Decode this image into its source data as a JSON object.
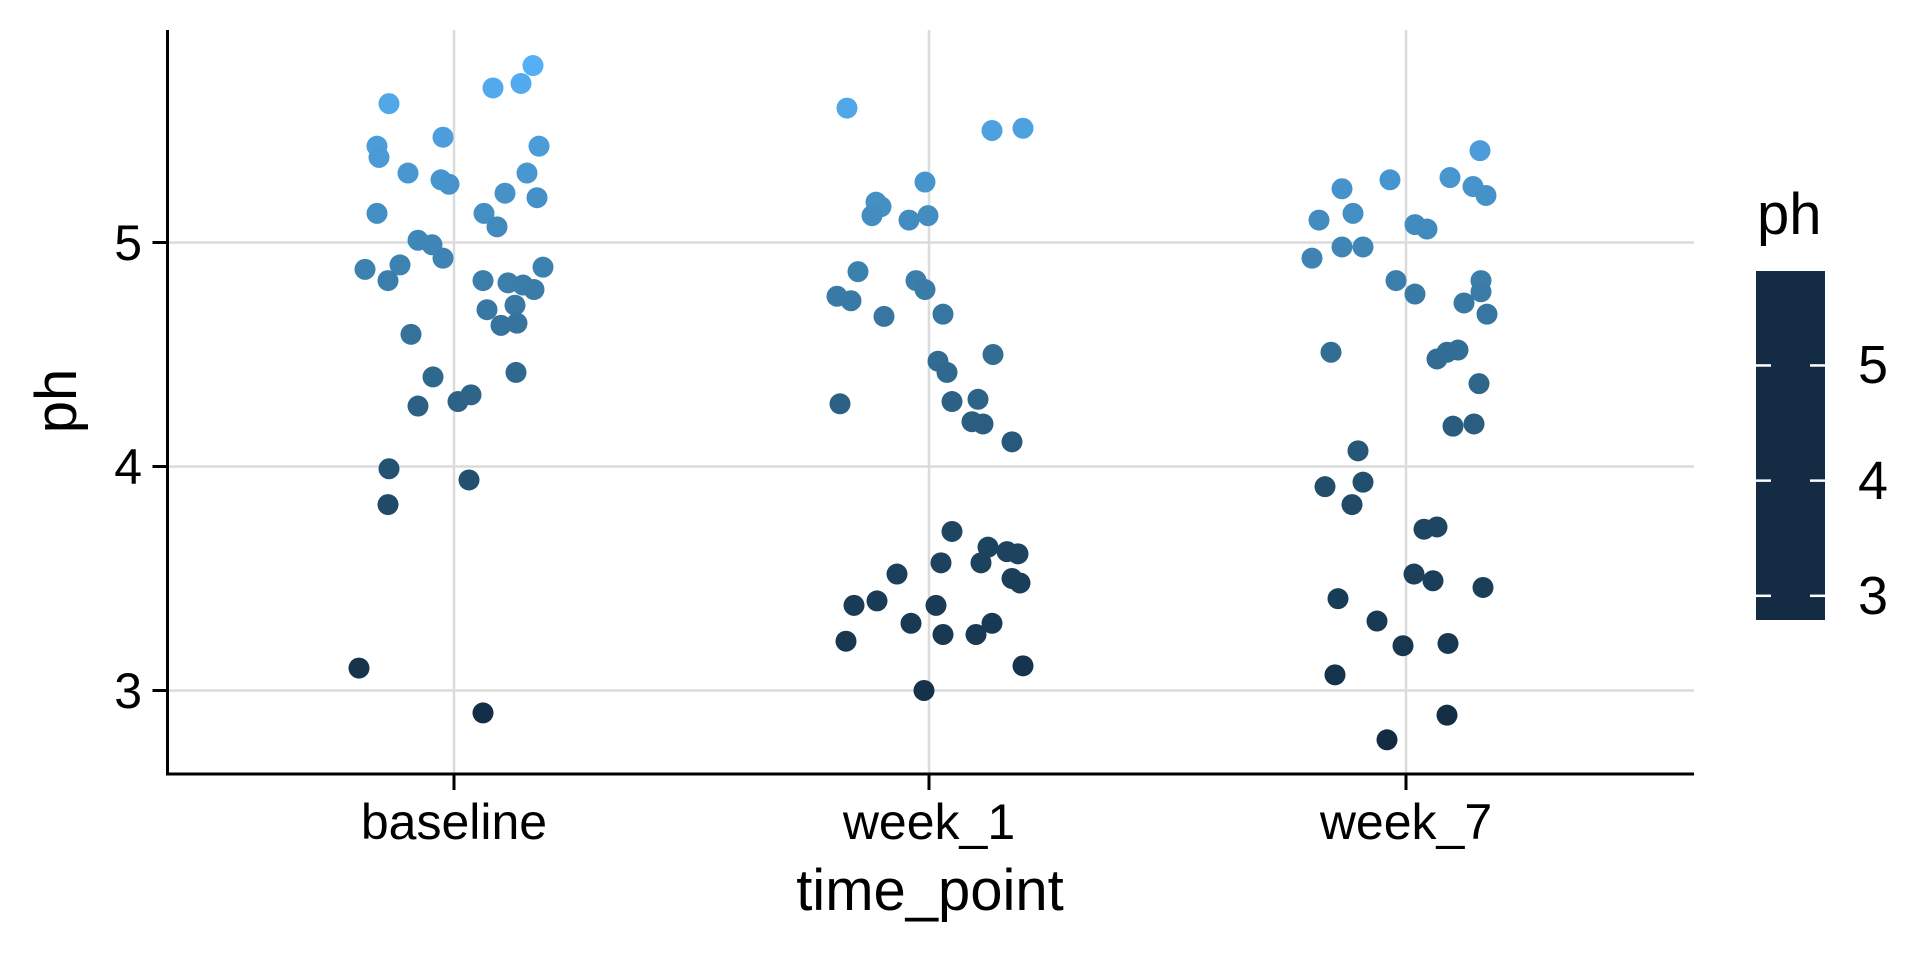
{
  "chart_data": {
    "type": "scatter",
    "subtype": "jitter",
    "title": "",
    "x_axis": {
      "label": "time_point",
      "categories": [
        "baseline",
        "week_1",
        "week_7"
      ],
      "grid": true
    },
    "y_axis": {
      "label": "ph",
      "tick_labels": [
        "5",
        "4",
        "3"
      ],
      "tick_values": [
        5,
        4,
        3
      ],
      "range": [
        2.62,
        5.97
      ],
      "grid": true
    },
    "legend": {
      "title": "ph",
      "position": "right",
      "tick_labels": [
        "5",
        "4",
        "3"
      ],
      "tick_values": [
        5,
        4,
        3
      ],
      "domain": [
        2.79,
        5.82
      ],
      "gradient": [
        {
          "t": 0.0,
          "color": "#132B43"
        },
        {
          "t": 0.33,
          "color": "#1F4864"
        },
        {
          "t": 0.66,
          "color": "#3A7CA8"
        },
        {
          "t": 1.0,
          "color": "#56B1F7"
        }
      ]
    },
    "style": {
      "grid_color": "#DBDBDB",
      "axis_color": "#000000",
      "point_radius": 10.5,
      "background": "#ffffff"
    },
    "points": [
      [
        0,
        -65,
        5.62
      ],
      [
        0,
        39,
        5.69
      ],
      [
        0,
        67,
        5.71
      ],
      [
        0,
        79,
        5.79
      ],
      [
        0,
        -77,
        5.43
      ],
      [
        0,
        -75,
        5.38
      ],
      [
        0,
        -11,
        5.47
      ],
      [
        0,
        85,
        5.43
      ],
      [
        0,
        -46,
        5.31
      ],
      [
        0,
        -13,
        5.28
      ],
      [
        0,
        -5,
        5.26
      ],
      [
        0,
        73,
        5.31
      ],
      [
        0,
        51,
        5.22
      ],
      [
        0,
        83,
        5.2
      ],
      [
        0,
        -77,
        5.13
      ],
      [
        0,
        30,
        5.13
      ],
      [
        0,
        43,
        5.07
      ],
      [
        0,
        -36,
        5.01
      ],
      [
        0,
        -22,
        4.99
      ],
      [
        0,
        -11,
        4.93
      ],
      [
        0,
        -89,
        4.88
      ],
      [
        0,
        -54,
        4.9
      ],
      [
        0,
        -66,
        4.83
      ],
      [
        0,
        29,
        4.83
      ],
      [
        0,
        54,
        4.82
      ],
      [
        0,
        69,
        4.81
      ],
      [
        0,
        89,
        4.89
      ],
      [
        0,
        80,
        4.79
      ],
      [
        0,
        33,
        4.7
      ],
      [
        0,
        61,
        4.72
      ],
      [
        0,
        47,
        4.63
      ],
      [
        0,
        63,
        4.64
      ],
      [
        0,
        -43,
        4.59
      ],
      [
        0,
        -21,
        4.4
      ],
      [
        0,
        62,
        4.42
      ],
      [
        0,
        -36,
        4.27
      ],
      [
        0,
        4,
        4.29
      ],
      [
        0,
        17,
        4.32
      ],
      [
        0,
        -65,
        3.99
      ],
      [
        0,
        15,
        3.94
      ],
      [
        0,
        -66,
        3.83
      ],
      [
        0,
        -95,
        3.1
      ],
      [
        0,
        29,
        2.9
      ],
      [
        1,
        -82,
        5.6
      ],
      [
        1,
        63,
        5.5
      ],
      [
        1,
        94,
        5.51
      ],
      [
        1,
        -4,
        5.27
      ],
      [
        1,
        -53,
        5.18
      ],
      [
        1,
        -48,
        5.16
      ],
      [
        1,
        -57,
        5.12
      ],
      [
        1,
        -20,
        5.1
      ],
      [
        1,
        -1,
        5.12
      ],
      [
        1,
        -71,
        4.87
      ],
      [
        1,
        -92,
        4.76
      ],
      [
        1,
        -78,
        4.74
      ],
      [
        1,
        -13,
        4.83
      ],
      [
        1,
        -4,
        4.79
      ],
      [
        1,
        -45,
        4.67
      ],
      [
        1,
        14,
        4.68
      ],
      [
        1,
        9,
        4.47
      ],
      [
        1,
        18,
        4.42
      ],
      [
        1,
        64,
        4.5
      ],
      [
        1,
        -89,
        4.28
      ],
      [
        1,
        23,
        4.29
      ],
      [
        1,
        49,
        4.3
      ],
      [
        1,
        43,
        4.2
      ],
      [
        1,
        54,
        4.19
      ],
      [
        1,
        83,
        4.11
      ],
      [
        1,
        23,
        3.71
      ],
      [
        1,
        59,
        3.64
      ],
      [
        1,
        52,
        3.57
      ],
      [
        1,
        78,
        3.62
      ],
      [
        1,
        89,
        3.61
      ],
      [
        1,
        12,
        3.57
      ],
      [
        1,
        83,
        3.5
      ],
      [
        1,
        91,
        3.48
      ],
      [
        1,
        -32,
        3.52
      ],
      [
        1,
        -75,
        3.38
      ],
      [
        1,
        -52,
        3.4
      ],
      [
        1,
        7,
        3.38
      ],
      [
        1,
        -18,
        3.3
      ],
      [
        1,
        14,
        3.25
      ],
      [
        1,
        47,
        3.25
      ],
      [
        1,
        63,
        3.3
      ],
      [
        1,
        -83,
        3.22
      ],
      [
        1,
        94,
        3.11
      ],
      [
        1,
        -5,
        3.0
      ],
      [
        2,
        74,
        5.41
      ],
      [
        2,
        44,
        5.29
      ],
      [
        2,
        67,
        5.25
      ],
      [
        2,
        80,
        5.21
      ],
      [
        2,
        -16,
        5.28
      ],
      [
        2,
        -64,
        5.24
      ],
      [
        2,
        -53,
        5.13
      ],
      [
        2,
        -87,
        5.1
      ],
      [
        2,
        9,
        5.08
      ],
      [
        2,
        21,
        5.06
      ],
      [
        2,
        -64,
        4.98
      ],
      [
        2,
        -43,
        4.98
      ],
      [
        2,
        -94,
        4.93
      ],
      [
        2,
        -10,
        4.83
      ],
      [
        2,
        9,
        4.77
      ],
      [
        2,
        75,
        4.83
      ],
      [
        2,
        75,
        4.78
      ],
      [
        2,
        58,
        4.73
      ],
      [
        2,
        81,
        4.68
      ],
      [
        2,
        -75,
        4.51
      ],
      [
        2,
        31,
        4.48
      ],
      [
        2,
        41,
        4.51
      ],
      [
        2,
        52,
        4.52
      ],
      [
        2,
        73,
        4.37
      ],
      [
        2,
        47,
        4.18
      ],
      [
        2,
        68,
        4.19
      ],
      [
        2,
        -48,
        4.07
      ],
      [
        2,
        -81,
        3.91
      ],
      [
        2,
        -43,
        3.93
      ],
      [
        2,
        -54,
        3.83
      ],
      [
        2,
        18,
        3.72
      ],
      [
        2,
        31,
        3.73
      ],
      [
        2,
        8,
        3.52
      ],
      [
        2,
        27,
        3.49
      ],
      [
        2,
        77,
        3.46
      ],
      [
        2,
        -68,
        3.41
      ],
      [
        2,
        -29,
        3.31
      ],
      [
        2,
        -3,
        3.2
      ],
      [
        2,
        42,
        3.21
      ],
      [
        2,
        -71,
        3.07
      ],
      [
        2,
        41,
        2.89
      ],
      [
        2,
        -19,
        2.78
      ]
    ]
  }
}
